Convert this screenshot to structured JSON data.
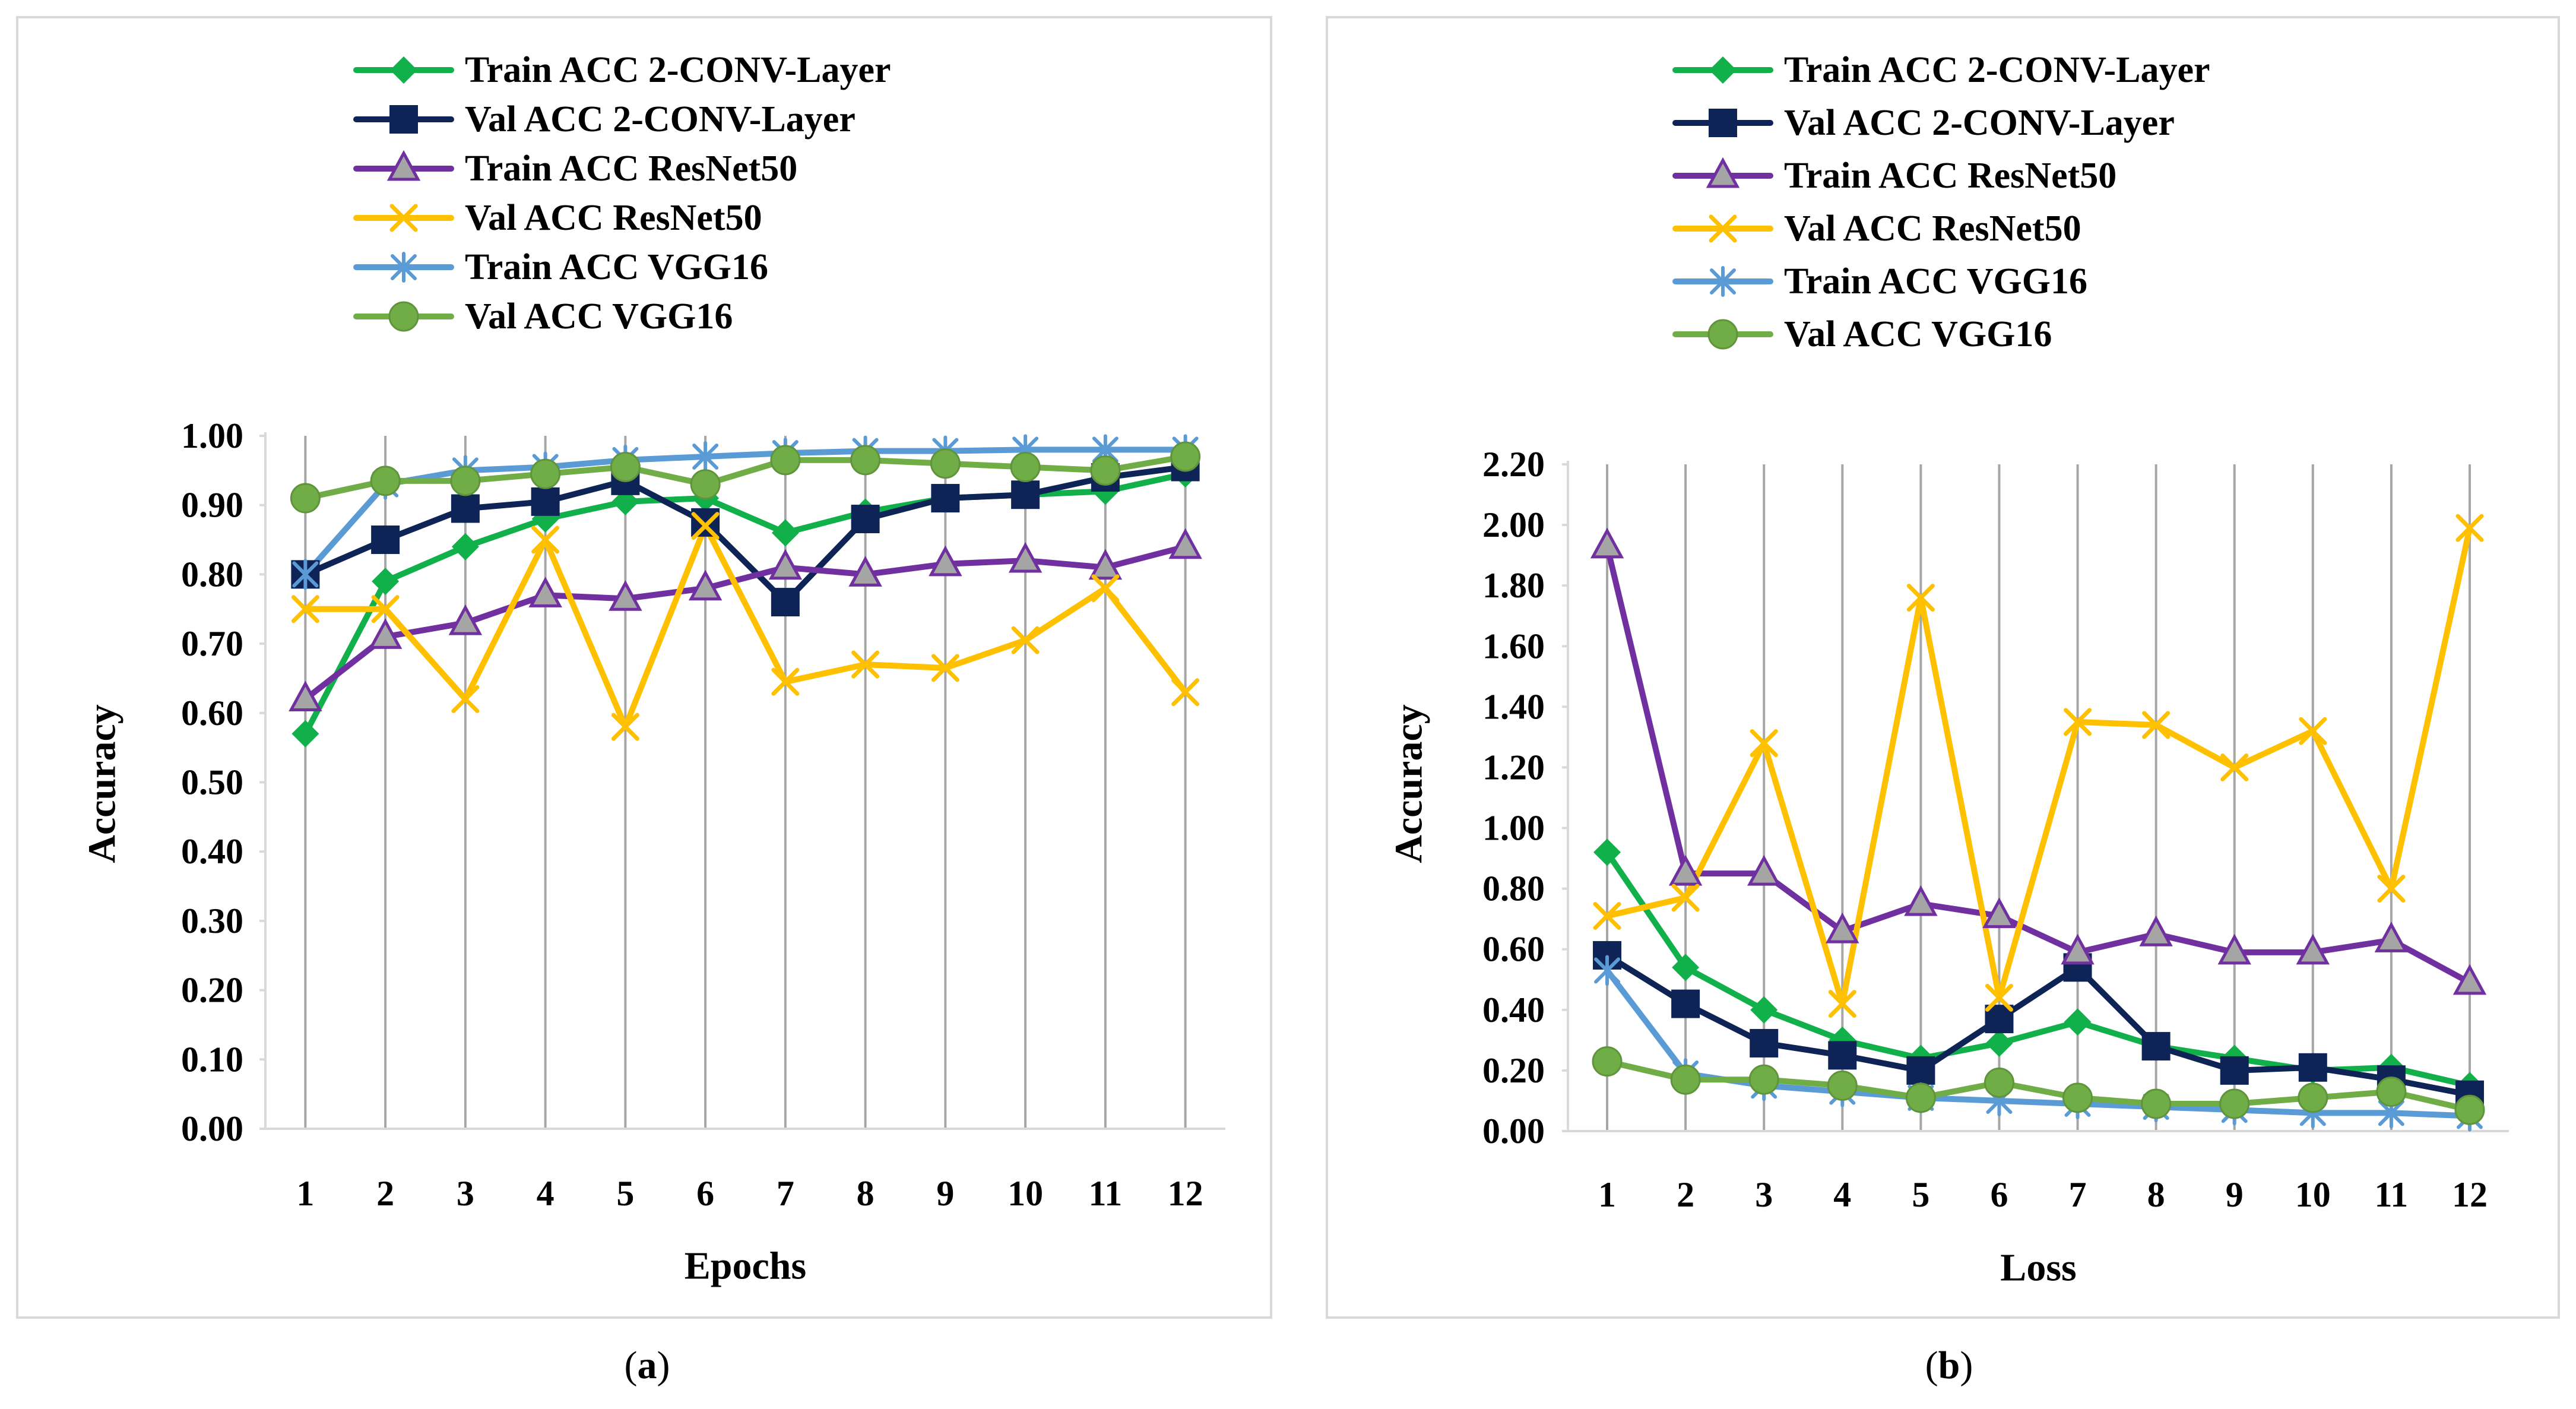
{
  "chart_data": [
    {
      "id": "a",
      "type": "line",
      "caption_label": "a",
      "xlabel": "Epochs",
      "ylabel": "Accuracy",
      "ylim": [
        0,
        1.0
      ],
      "ytick_step": 0.1,
      "categories": [
        "1",
        "2",
        "3",
        "4",
        "5",
        "6",
        "7",
        "8",
        "9",
        "10",
        "11",
        "12"
      ],
      "grid": "vertical",
      "series": [
        {
          "name": "Train ACC 2-CONV-Layer",
          "color": "#12b04a",
          "marker": "diamond",
          "values": [
            0.57,
            0.79,
            0.84,
            0.88,
            0.905,
            0.91,
            0.86,
            0.89,
            0.91,
            0.915,
            0.92,
            0.945
          ]
        },
        {
          "name": "Val ACC 2-CONV-Layer",
          "color": "#0f2456",
          "marker": "square",
          "values": [
            0.8,
            0.85,
            0.895,
            0.905,
            0.935,
            0.875,
            0.76,
            0.88,
            0.91,
            0.915,
            0.94,
            0.955
          ]
        },
        {
          "name": "Train ACC ResNet50",
          "color": "#7030a0",
          "marker": "triangle",
          "values": [
            0.62,
            0.71,
            0.73,
            0.77,
            0.765,
            0.78,
            0.81,
            0.8,
            0.815,
            0.82,
            0.81,
            0.84
          ]
        },
        {
          "name": "Val ACC ResNet50",
          "color": "#ffc000",
          "marker": "x",
          "values": [
            0.75,
            0.75,
            0.62,
            0.85,
            0.58,
            0.87,
            0.645,
            0.67,
            0.665,
            0.705,
            0.78,
            0.63
          ]
        },
        {
          "name": "Train ACC VGG16",
          "color": "#5b9bd5",
          "marker": "star",
          "values": [
            0.8,
            0.93,
            0.95,
            0.955,
            0.965,
            0.97,
            0.975,
            0.978,
            0.978,
            0.98,
            0.98,
            0.98
          ]
        },
        {
          "name": "Val ACC VGG16",
          "color": "#70ad47",
          "marker": "circle",
          "values": [
            0.91,
            0.935,
            0.935,
            0.945,
            0.955,
            0.93,
            0.965,
            0.965,
            0.96,
            0.955,
            0.95,
            0.97
          ]
        }
      ]
    },
    {
      "id": "b",
      "type": "line",
      "caption_label": "b",
      "xlabel": "Loss",
      "ylabel": "Accuracy",
      "ylim": [
        0,
        2.2
      ],
      "ytick_step": 0.2,
      "categories": [
        "1",
        "2",
        "3",
        "4",
        "5",
        "6",
        "7",
        "8",
        "9",
        "10",
        "11",
        "12"
      ],
      "grid": "vertical",
      "series": [
        {
          "name": "Train ACC 2-CONV-Layer",
          "color": "#12b04a",
          "marker": "diamond",
          "values": [
            0.92,
            0.54,
            0.4,
            0.3,
            0.24,
            0.29,
            0.36,
            0.28,
            0.24,
            0.2,
            0.21,
            0.15
          ]
        },
        {
          "name": "Val ACC 2-CONV-Layer",
          "color": "#0f2456",
          "marker": "square",
          "values": [
            0.58,
            0.42,
            0.29,
            0.25,
            0.2,
            0.37,
            0.54,
            0.28,
            0.2,
            0.21,
            0.17,
            0.12
          ]
        },
        {
          "name": "Train ACC ResNet50",
          "color": "#7030a0",
          "marker": "triangle",
          "values": [
            1.93,
            0.85,
            0.85,
            0.66,
            0.75,
            0.71,
            0.59,
            0.65,
            0.59,
            0.59,
            0.63,
            0.49
          ]
        },
        {
          "name": "Val ACC ResNet50",
          "color": "#ffc000",
          "marker": "x",
          "values": [
            0.71,
            0.77,
            1.28,
            0.42,
            1.76,
            0.44,
            1.35,
            1.34,
            1.2,
            1.32,
            0.8,
            1.99
          ]
        },
        {
          "name": "Train ACC VGG16",
          "color": "#5b9bd5",
          "marker": "star",
          "values": [
            0.53,
            0.19,
            0.15,
            0.13,
            0.11,
            0.1,
            0.09,
            0.08,
            0.07,
            0.06,
            0.06,
            0.05
          ]
        },
        {
          "name": "Val ACC VGG16",
          "color": "#70ad47",
          "marker": "circle",
          "values": [
            0.23,
            0.17,
            0.17,
            0.15,
            0.11,
            0.16,
            0.11,
            0.09,
            0.09,
            0.11,
            0.13,
            0.07
          ]
        }
      ]
    }
  ]
}
